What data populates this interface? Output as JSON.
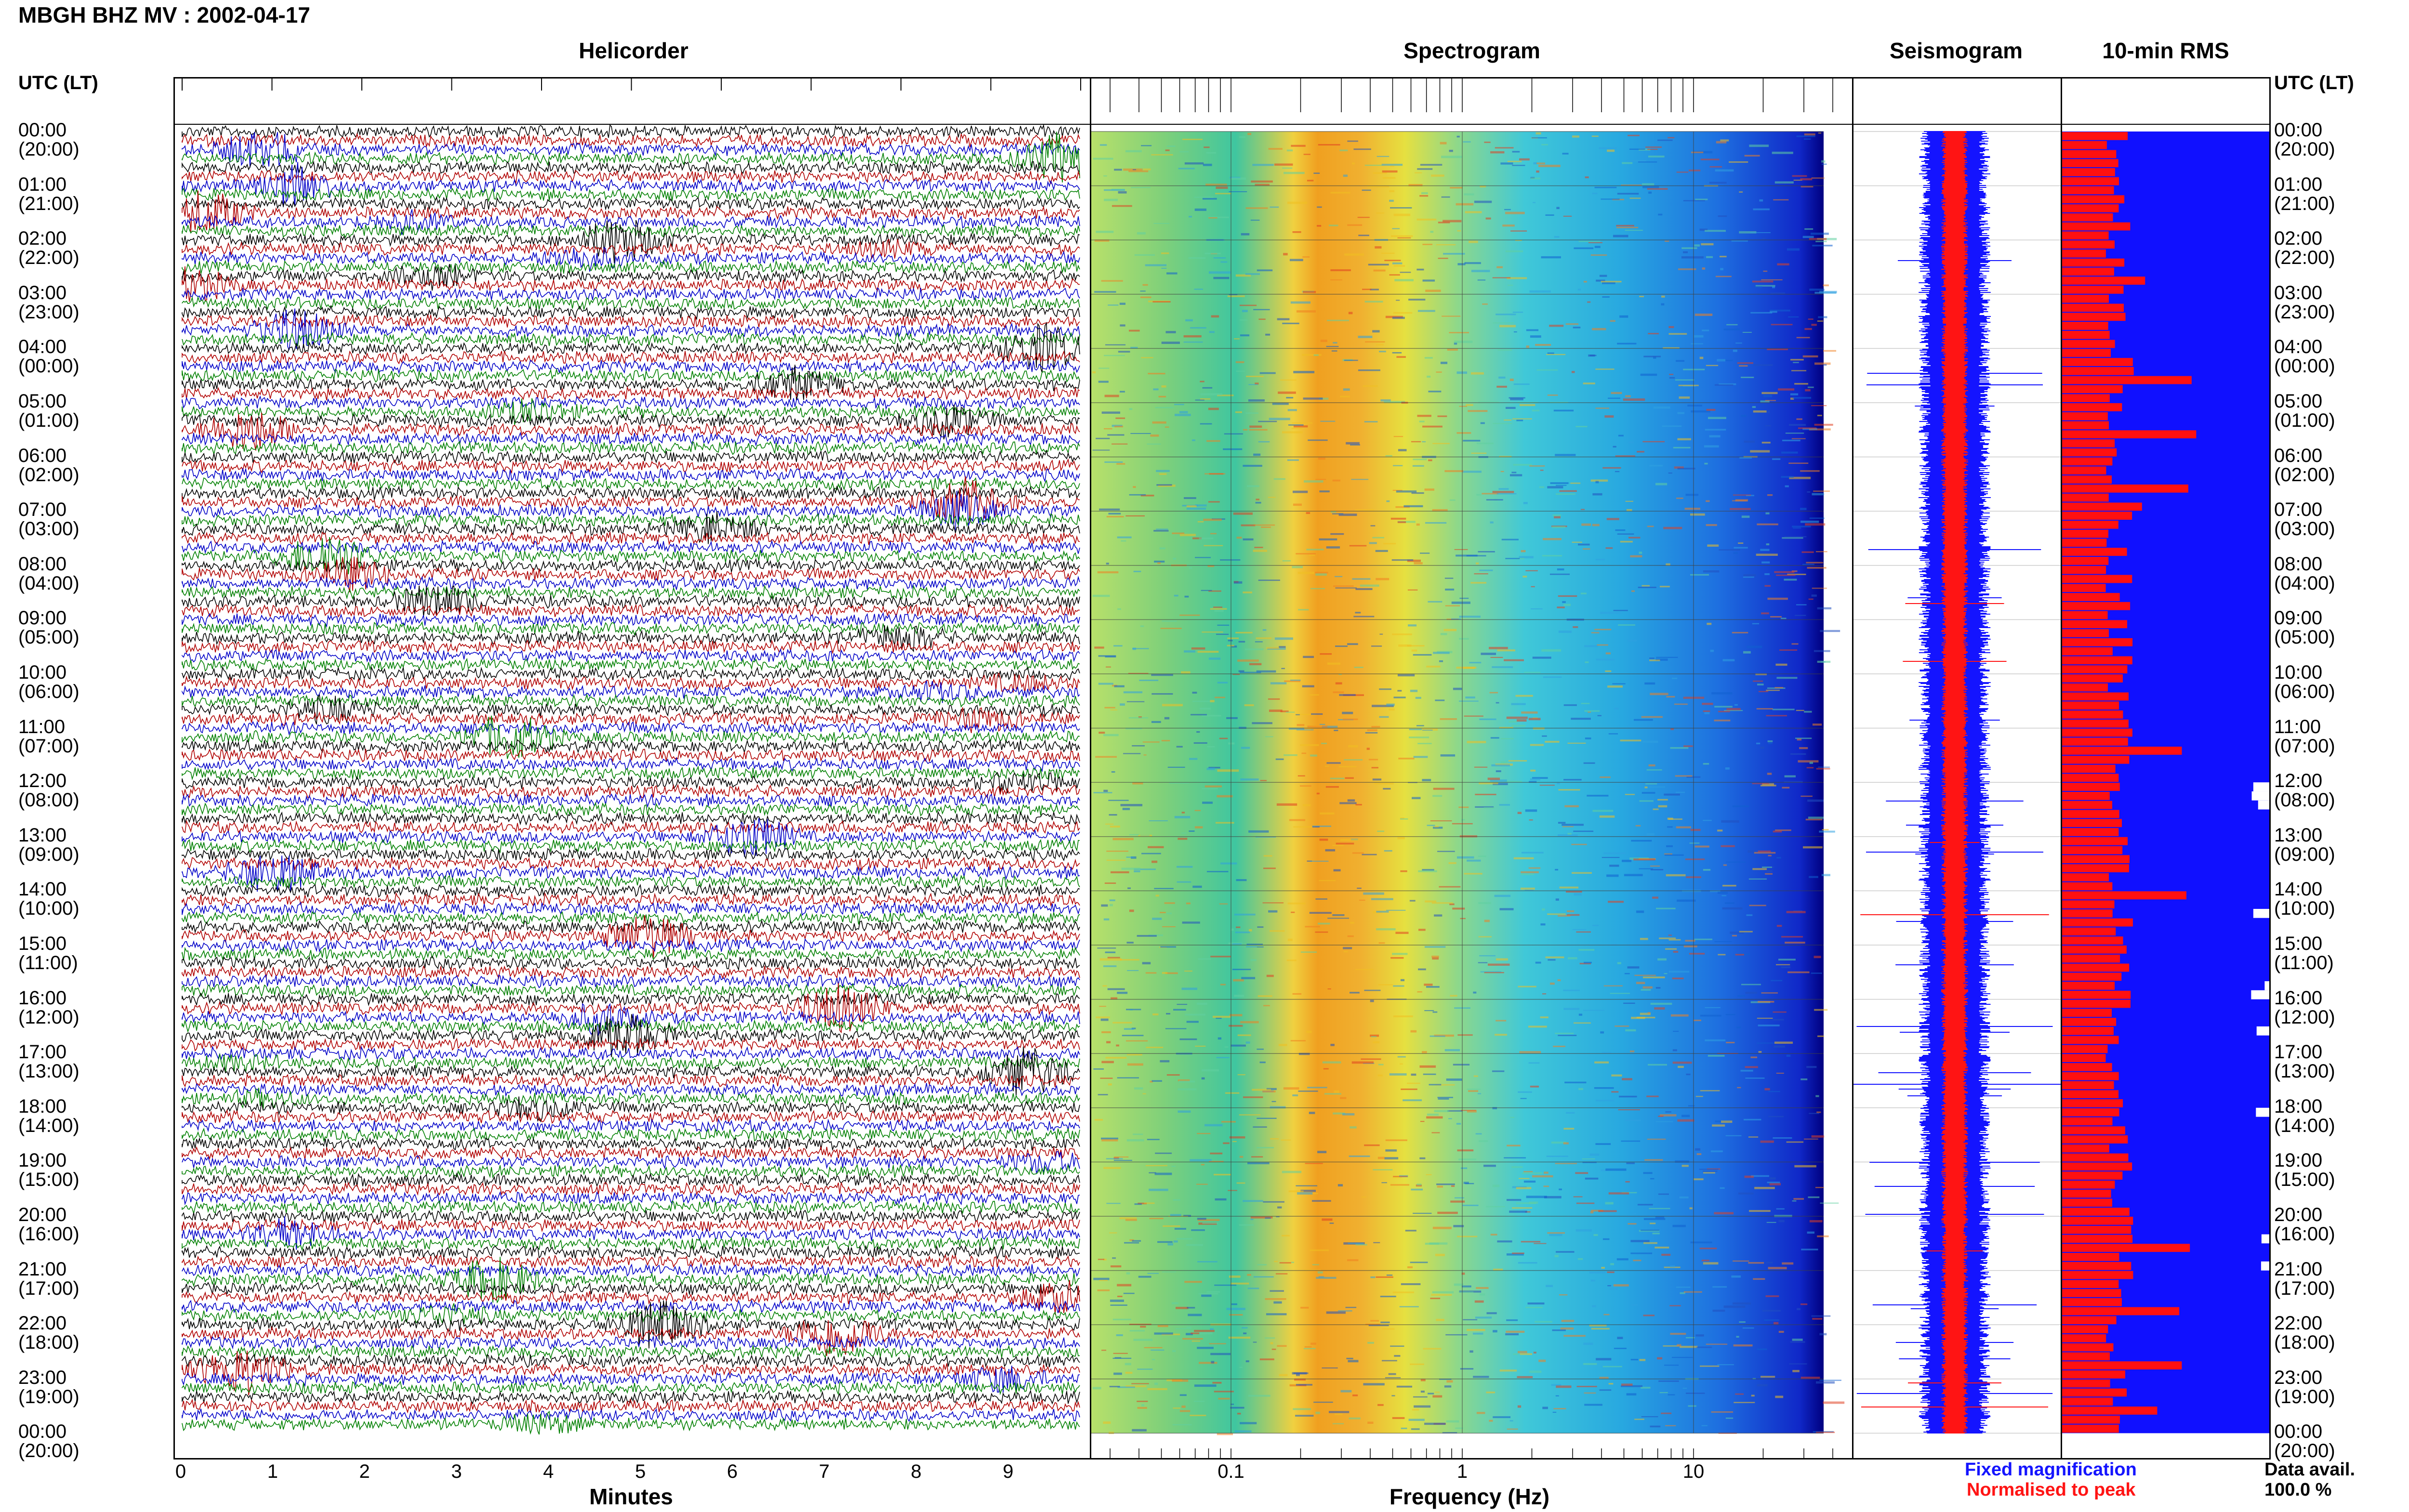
{
  "header": {
    "title": "MBGH BHZ MV : 2002-04-17"
  },
  "panels": {
    "helicorder": "Helicorder",
    "spectrogram": "Spectrogram",
    "seismogram": "Seismogram",
    "rms": "10-min RMS"
  },
  "time_axis": {
    "header_left": "UTC (LT)",
    "header_right": "UTC (LT)",
    "labels": [
      "00:00 (20:00)",
      "01:00 (21:00)",
      "02:00 (22:00)",
      "03:00 (23:00)",
      "04:00 (00:00)",
      "05:00 (01:00)",
      "06:00 (02:00)",
      "07:00 (03:00)",
      "08:00 (04:00)",
      "09:00 (05:00)",
      "10:00 (06:00)",
      "11:00 (07:00)",
      "12:00 (08:00)",
      "13:00 (09:00)",
      "14:00 (10:00)",
      "15:00 (11:00)",
      "16:00 (12:00)",
      "17:00 (13:00)",
      "18:00 (14:00)",
      "19:00 (15:00)",
      "20:00 (16:00)",
      "21:00 (17:00)",
      "22:00 (18:00)",
      "23:00 (19:00)",
      "00:00 (20:00)"
    ]
  },
  "helicorder_axis": {
    "ticks": [
      "0",
      "1",
      "2",
      "3",
      "4",
      "5",
      "6",
      "7",
      "8",
      "9"
    ],
    "xlabel": "Minutes"
  },
  "spectrogram_axis": {
    "ticks": [
      "0.1",
      "1",
      "10"
    ],
    "xlabel": "Frequency (Hz)"
  },
  "seismogram_legend": {
    "fixed": "Fixed magnification",
    "normalised": "Normalised to peak",
    "fixed_color": "#1414ff",
    "normalised_color": "#ff1414"
  },
  "data_availability": {
    "label": "Data avail.",
    "value": "100.0 %"
  },
  "colors": {
    "helicorder_traces": [
      "#000000",
      "#b00000",
      "#0000c8",
      "#008000"
    ],
    "rms_bar": "#ff1010",
    "rms_bg": "#1010ff"
  }
}
